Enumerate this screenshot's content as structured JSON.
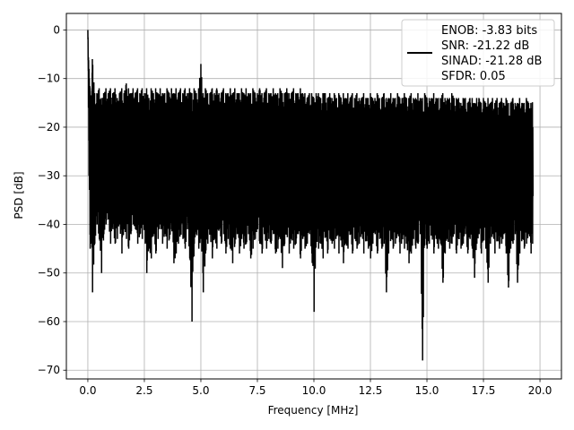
{
  "chart_data": {
    "type": "line",
    "title": "",
    "xlabel": "Frequency [MHz]",
    "ylabel": "PSD [dB]",
    "xlim": [
      -0.95,
      20.95
    ],
    "ylim": [
      -71.8,
      3.4
    ],
    "xticks": [
      0.0,
      2.5,
      5.0,
      7.5,
      10.0,
      12.5,
      15.0,
      17.5,
      20.0
    ],
    "xtick_labels": [
      "0.0",
      "2.5",
      "5.0",
      "7.5",
      "10.0",
      "12.5",
      "15.0",
      "17.5",
      "20.0"
    ],
    "yticks": [
      0,
      -10,
      -20,
      -30,
      -40,
      -50,
      -60,
      -70
    ],
    "ytick_labels": [
      "0",
      "−10",
      "−20",
      "−30",
      "−40",
      "−50",
      "−60",
      "−70"
    ],
    "grid": true,
    "legend_position": "top-right",
    "legend_lines": [
      "ENOB: -3.83 bits",
      "SNR: -21.22 dB",
      "SINAD: -21.28 dB",
      "SFDR: 0.05"
    ],
    "series": [
      {
        "color": "#000000",
        "x": [
          0.0,
          0.05,
          0.1,
          0.15,
          0.2,
          0.3,
          0.4,
          0.5,
          0.6,
          0.7,
          0.8,
          0.9,
          1.0,
          1.1,
          1.2,
          1.3,
          1.4,
          1.5,
          1.6,
          1.7,
          1.8,
          1.9,
          2.0,
          2.1,
          2.2,
          2.3,
          2.4,
          2.5,
          2.6,
          2.7,
          2.8,
          2.9,
          3.0,
          3.1,
          3.2,
          3.3,
          3.4,
          3.5,
          3.6,
          3.7,
          3.8,
          3.9,
          4.0,
          4.1,
          4.2,
          4.3,
          4.4,
          4.5,
          4.6,
          4.7,
          4.8,
          4.9,
          5.0,
          5.1,
          5.2,
          5.3,
          5.4,
          5.5,
          5.6,
          5.7,
          5.8,
          5.9,
          6.0,
          6.1,
          6.2,
          6.3,
          6.4,
          6.5,
          6.6,
          6.7,
          6.8,
          6.9,
          7.0,
          7.1,
          7.2,
          7.3,
          7.4,
          7.5,
          7.6,
          7.7,
          7.8,
          7.9,
          8.0,
          8.1,
          8.2,
          8.3,
          8.4,
          8.5,
          8.6,
          8.7,
          8.8,
          8.9,
          9.0,
          9.1,
          9.2,
          9.3,
          9.4,
          9.5,
          9.6,
          9.7,
          9.8,
          9.9,
          10.0,
          10.1,
          10.2,
          10.3,
          10.4,
          10.5,
          10.6,
          10.7,
          10.8,
          10.9,
          11.0,
          11.1,
          11.2,
          11.3,
          11.4,
          11.5,
          11.6,
          11.7,
          11.8,
          11.9,
          12.0,
          12.1,
          12.2,
          12.3,
          12.4,
          12.5,
          12.6,
          12.7,
          12.8,
          12.9,
          13.0,
          13.1,
          13.2,
          13.3,
          13.4,
          13.5,
          13.6,
          13.7,
          13.8,
          13.9,
          14.0,
          14.1,
          14.2,
          14.3,
          14.4,
          14.5,
          14.6,
          14.7,
          14.8,
          14.9,
          15.0,
          15.1,
          15.2,
          15.3,
          15.4,
          15.5,
          15.6,
          15.7,
          15.8,
          15.9,
          16.0,
          16.1,
          16.2,
          16.3,
          16.4,
          16.5,
          16.6,
          16.7,
          16.8,
          16.9,
          17.0,
          17.1,
          17.2,
          17.3,
          17.4,
          17.5,
          17.6,
          17.7,
          17.8,
          17.9,
          18.0,
          18.1,
          18.2,
          18.3,
          18.4,
          18.5,
          18.6,
          18.7,
          18.8,
          18.9,
          19.0,
          19.1,
          19.2,
          19.3,
          19.4,
          19.5,
          19.6,
          19.7,
          19.8,
          19.9,
          20.0
        ],
        "y_max": [
          0.0,
          -8.0,
          -12.0,
          -14.0,
          -6.0,
          -13.0,
          -13.0,
          -12.0,
          -14.0,
          -13.0,
          -12.0,
          -13.0,
          -12.0,
          -13.0,
          -12.0,
          -14.0,
          -13.0,
          -12.0,
          -13.0,
          -11.0,
          -12.0,
          -13.0,
          -12.0,
          -13.0,
          -12.0,
          -13.0,
          -12.0,
          -13.0,
          -12.0,
          -14.0,
          -12.0,
          -13.0,
          -12.0,
          -13.0,
          -12.0,
          -13.0,
          -13.0,
          -12.0,
          -13.0,
          -12.0,
          -13.0,
          -12.0,
          -13.0,
          -12.0,
          -13.0,
          -12.0,
          -13.0,
          -12.0,
          -13.0,
          -12.0,
          -13.0,
          -12.0,
          -7.0,
          -13.0,
          -12.0,
          -13.0,
          -13.0,
          -12.0,
          -13.0,
          -12.0,
          -13.0,
          -13.0,
          -12.0,
          -13.0,
          -13.0,
          -12.0,
          -13.0,
          -12.0,
          -13.0,
          -13.0,
          -12.0,
          -13.0,
          -12.0,
          -13.0,
          -13.0,
          -12.0,
          -13.0,
          -13.0,
          -12.0,
          -13.0,
          -13.0,
          -12.0,
          -13.0,
          -13.0,
          -12.0,
          -13.0,
          -13.0,
          -12.0,
          -13.0,
          -13.0,
          -12.0,
          -13.0,
          -13.0,
          -12.0,
          -13.0,
          -13.0,
          -12.0,
          -13.0,
          -13.0,
          -14.0,
          -13.0,
          -13.0,
          -14.0,
          -13.0,
          -13.0,
          -14.0,
          -13.0,
          -13.0,
          -14.0,
          -13.0,
          -14.0,
          -13.0,
          -14.0,
          -13.0,
          -14.0,
          -13.0,
          -14.0,
          -13.0,
          -14.0,
          -13.0,
          -14.0,
          -13.0,
          -14.0,
          -14.0,
          -13.0,
          -14.0,
          -14.0,
          -13.0,
          -14.0,
          -14.0,
          -13.0,
          -14.0,
          -14.0,
          -13.0,
          -14.0,
          -14.0,
          -13.0,
          -14.0,
          -14.0,
          -13.0,
          -14.0,
          -14.0,
          -13.0,
          -14.0,
          -14.0,
          -13.0,
          -14.0,
          -14.0,
          -13.0,
          -14.0,
          -14.0,
          -13.0,
          -14.0,
          -14.0,
          -14.0,
          -13.0,
          -14.0,
          -14.0,
          -14.0,
          -13.0,
          -14.0,
          -14.0,
          -14.0,
          -13.0,
          -14.0,
          -14.0,
          -14.0,
          -15.0,
          -14.0,
          -14.0,
          -15.0,
          -14.0,
          -14.0,
          -15.0,
          -14.0,
          -14.0,
          -15.0,
          -14.0,
          -15.0,
          -14.0,
          -15.0,
          -14.0,
          -15.0,
          -14.0,
          -15.0,
          -14.0,
          -15.0,
          -14.0,
          -15.0,
          -15.0,
          -14.0,
          -15.0,
          -15.0,
          -14.0,
          -15.0,
          -15.0,
          -14.0,
          -15.0,
          -15.0,
          -14.0
        ],
        "y_min": [
          -2.0,
          -30.0,
          -45.0,
          -42.0,
          -54.0,
          -44.0,
          -40.0,
          -43.0,
          -50.0,
          -42.0,
          -40.0,
          -39.0,
          -44.0,
          -41.0,
          -44.0,
          -43.0,
          -40.0,
          -46.0,
          -41.0,
          -43.0,
          -45.0,
          -42.0,
          -40.0,
          -41.0,
          -44.0,
          -42.0,
          -43.0,
          -41.0,
          -50.0,
          -45.0,
          -47.0,
          -42.0,
          -46.0,
          -43.0,
          -40.0,
          -44.0,
          -42.0,
          -45.0,
          -43.0,
          -41.0,
          -48.0,
          -46.0,
          -44.0,
          -42.0,
          -43.0,
          -45.0,
          -41.0,
          -47.0,
          -60.0,
          -44.0,
          -42.0,
          -45.0,
          -43.0,
          -54.0,
          -46.0,
          -44.0,
          -42.0,
          -47.0,
          -43.0,
          -45.0,
          -41.0,
          -44.0,
          -42.0,
          -46.0,
          -43.0,
          -45.0,
          -48.0,
          -44.0,
          -42.0,
          -46.0,
          -43.0,
          -45.0,
          -44.0,
          -42.0,
          -47.0,
          -45.0,
          -43.0,
          -41.0,
          -44.0,
          -46.0,
          -42.0,
          -45.0,
          -43.0,
          -44.0,
          -42.0,
          -46.0,
          -45.0,
          -43.0,
          -49.0,
          -44.0,
          -42.0,
          -46.0,
          -43.0,
          -45.0,
          -44.0,
          -42.0,
          -47.0,
          -43.0,
          -45.0,
          -44.0,
          -42.0,
          -46.0,
          -58.0,
          -43.0,
          -45.0,
          -44.0,
          -47.0,
          -42.0,
          -46.0,
          -43.0,
          -44.0,
          -45.0,
          -42.0,
          -46.0,
          -43.0,
          -48.0,
          -44.0,
          -45.0,
          -42.0,
          -46.0,
          -43.0,
          -45.0,
          -44.0,
          -42.0,
          -46.0,
          -43.0,
          -45.0,
          -47.0,
          -44.0,
          -42.0,
          -46.0,
          -43.0,
          -45.0,
          -44.0,
          -54.0,
          -46.0,
          -43.0,
          -45.0,
          -44.0,
          -42.0,
          -46.0,
          -43.0,
          -45.0,
          -44.0,
          -48.0,
          -46.0,
          -43.0,
          -45.0,
          -44.0,
          -42.0,
          -68.0,
          -43.0,
          -45.0,
          -44.0,
          -42.0,
          -46.0,
          -43.0,
          -45.0,
          -44.0,
          -52.0,
          -46.0,
          -43.0,
          -45.0,
          -44.0,
          -42.0,
          -46.0,
          -43.0,
          -45.0,
          -44.0,
          -42.0,
          -46.0,
          -43.0,
          -45.0,
          -51.0,
          -44.0,
          -42.0,
          -46.0,
          -43.0,
          -45.0,
          -52.0,
          -44.0,
          -42.0,
          -46.0,
          -43.0,
          -45.0,
          -44.0,
          -42.0,
          -46.0,
          -53.0,
          -45.0,
          -44.0,
          -42.0,
          -52.0,
          -46.0,
          -43.0,
          -45.0,
          -44.0,
          -42.0,
          -46.0,
          -43.0,
          -40.0
        ]
      }
    ]
  }
}
